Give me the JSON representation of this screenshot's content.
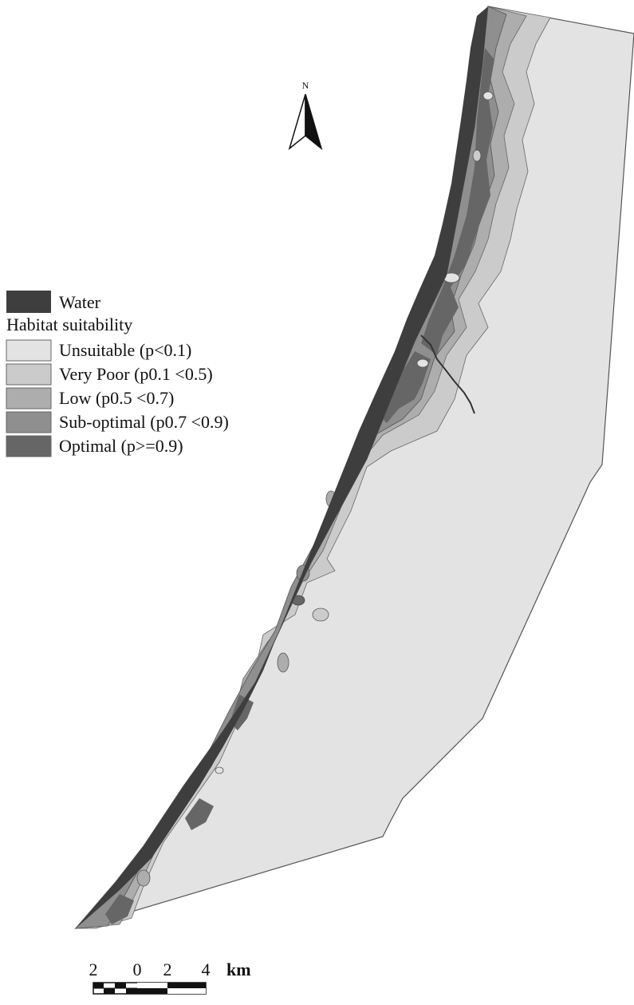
{
  "north_arrow": {
    "label": "N"
  },
  "legend": {
    "water_label": "Water",
    "group_title": "Habitat suitability",
    "classes": [
      {
        "label": "Unsuitable (p<0.1)",
        "color": "#e3e3e3"
      },
      {
        "label": "Very Poor (p0.1 <0.5)",
        "color": "#cbcbcb"
      },
      {
        "label": "Low (p0.5 <0.7)",
        "color": "#adadad"
      },
      {
        "label": "Sub-optimal (p0.7 <0.9)",
        "color": "#8f8f8f"
      },
      {
        "label": "Optimal (p>=0.9)",
        "color": "#666666"
      }
    ],
    "water_color": "#3e3e3e"
  },
  "scale_bar": {
    "tick_labels": [
      "2",
      "0",
      "2",
      "4"
    ],
    "unit": "km"
  }
}
